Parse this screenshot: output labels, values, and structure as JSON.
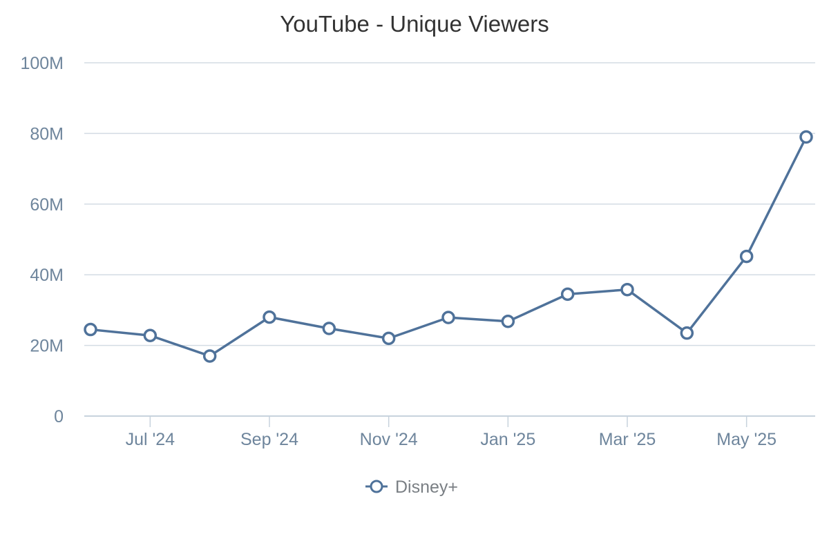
{
  "chart_data": {
    "type": "line",
    "title": "YouTube - Unique Viewers",
    "xlabel": "",
    "ylabel": "",
    "x": [
      "2024-06",
      "2024-07",
      "2024-08",
      "2024-09",
      "2024-10",
      "2024-11",
      "2024-12",
      "2025-01",
      "2025-02",
      "2025-03",
      "2025-04",
      "2025-05",
      "2025-06"
    ],
    "x_tick_labels": [
      {
        "x": "2024-07",
        "label": "Jul '24"
      },
      {
        "x": "2024-09",
        "label": "Sep '24"
      },
      {
        "x": "2024-11",
        "label": "Nov '24"
      },
      {
        "x": "2025-01",
        "label": "Jan '25"
      },
      {
        "x": "2025-03",
        "label": "Mar '25"
      },
      {
        "x": "2025-05",
        "label": "May '25"
      }
    ],
    "y_ticks": [
      0,
      20000000,
      40000000,
      60000000,
      80000000,
      100000000
    ],
    "y_tick_labels": [
      "0",
      "20M",
      "40M",
      "60M",
      "80M",
      "100M"
    ],
    "ylim": [
      0,
      100000000
    ],
    "grid": true,
    "legend_position": "bottom-center",
    "series": [
      {
        "name": "Disney+",
        "color": "#4f729a",
        "values": [
          24500000,
          22800000,
          17000000,
          28000000,
          24800000,
          22000000,
          27900000,
          26800000,
          34500000,
          35800000,
          23500000,
          45200000,
          79000000
        ]
      }
    ]
  }
}
